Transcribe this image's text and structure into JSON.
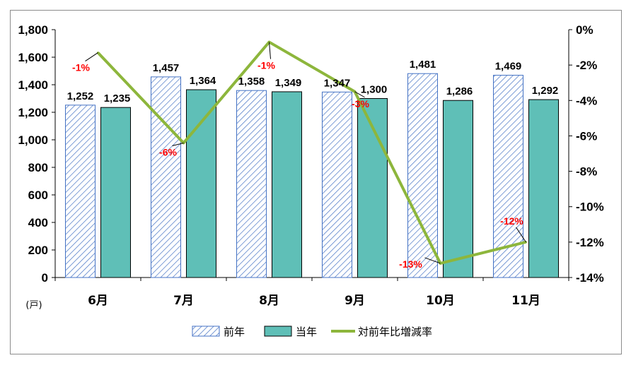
{
  "chart_data": {
    "type": "bar",
    "categories": [
      "6月",
      "7月",
      "8月",
      "9月",
      "10月",
      "11月"
    ],
    "unit_label": "(戸)",
    "series": [
      {
        "name": "前年",
        "type": "bar",
        "values": [
          1252,
          1457,
          1358,
          1347,
          1481,
          1469
        ],
        "labels": [
          "1,252",
          "1,457",
          "1,358",
          "1,347",
          "1,481",
          "1,469"
        ],
        "style": "hatched",
        "color": "#4472c4"
      },
      {
        "name": "当年",
        "type": "bar",
        "values": [
          1235,
          1364,
          1349,
          1300,
          1286,
          1292
        ],
        "labels": [
          "1,235",
          "1,364",
          "1,349",
          "1,300",
          "1,286",
          "1,292"
        ],
        "style": "solid",
        "color": "#5fbfb7"
      },
      {
        "name": "対前年比増減率",
        "type": "line",
        "axis": "right",
        "values": [
          -1.3,
          -6.4,
          -0.7,
          -3.5,
          -13.2,
          -12.0
        ],
        "labels": [
          "-1%",
          "-6%",
          "-1%",
          "-3%",
          "-13%",
          "-12%"
        ],
        "color": "#8db63c",
        "label_color": "#ff0000"
      }
    ],
    "left_axis": {
      "ylim": [
        0,
        1800
      ],
      "ticks": [
        0,
        200,
        400,
        600,
        800,
        1000,
        1200,
        1400,
        1600,
        1800
      ],
      "tick_labels": [
        "0",
        "200",
        "400",
        "600",
        "800",
        "1,000",
        "1,200",
        "1,400",
        "1,600",
        "1,800"
      ]
    },
    "right_axis": {
      "ylim": [
        -14,
        0
      ],
      "ticks": [
        0,
        -2,
        -4,
        -6,
        -8,
        -10,
        -12,
        -14
      ],
      "tick_labels": [
        "0%",
        "-2%",
        "-4%",
        "-6%",
        "-8%",
        "-10%",
        "-12%",
        "-14%"
      ]
    },
    "legend": {
      "position": "bottom"
    },
    "grid": false
  }
}
